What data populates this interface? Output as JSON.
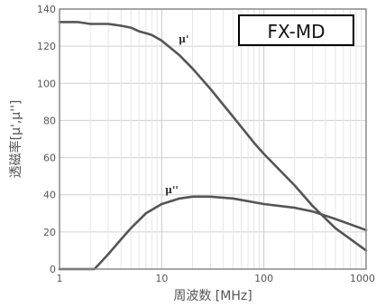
{
  "chart_data": {
    "type": "line",
    "xscale": "log",
    "xlim": [
      1,
      1000
    ],
    "ylim": [
      0,
      140
    ],
    "xticks": [
      "1",
      "10",
      "100",
      "1000"
    ],
    "yticks": [
      "0",
      "20",
      "40",
      "60",
      "80",
      "100",
      "120",
      "140"
    ],
    "xlabel": "周波数 [MHz]",
    "ylabel": "透磁率[μ',μ'']",
    "legend_box": "FX-MD",
    "grid": true,
    "series": [
      {
        "name": "μ'",
        "x": [
          1,
          1.5,
          2,
          3,
          4,
          5,
          6,
          7,
          8,
          10,
          15,
          20,
          30,
          50,
          80,
          100,
          200,
          300,
          500,
          1000
        ],
        "y": [
          133,
          133,
          132,
          132,
          131,
          130,
          128,
          127,
          126,
          123,
          115,
          108,
          97,
          82,
          68,
          62,
          45,
          34,
          22,
          10
        ]
      },
      {
        "name": "μ''",
        "x": [
          1,
          2.2,
          3,
          4,
          5,
          7,
          10,
          15,
          20,
          30,
          50,
          100,
          200,
          300,
          500,
          1000
        ],
        "y": [
          0,
          0,
          8,
          16,
          22,
          30,
          35,
          38,
          39,
          39,
          38,
          35,
          33,
          31,
          27,
          21
        ]
      }
    ]
  }
}
